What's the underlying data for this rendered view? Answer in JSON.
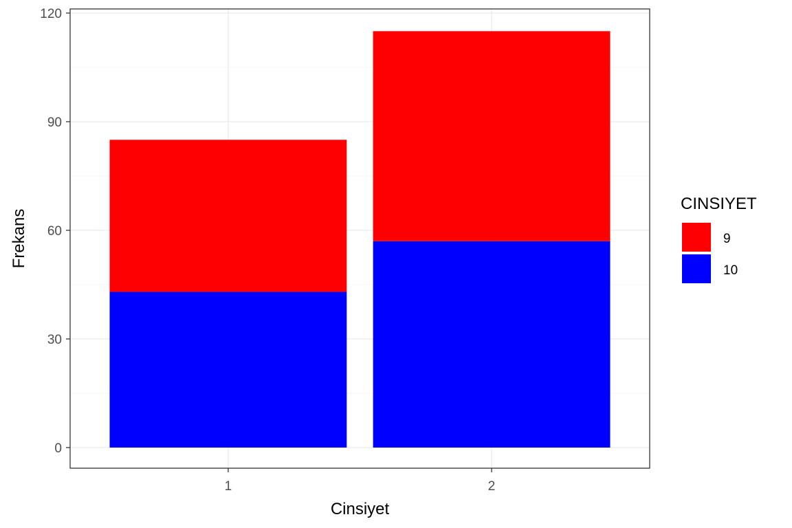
{
  "chart_data": {
    "type": "bar",
    "stacked": true,
    "categories": [
      "1",
      "2"
    ],
    "series": [
      {
        "name": "10",
        "values": [
          43,
          57
        ],
        "color": "#0000FF"
      },
      {
        "name": "9",
        "values": [
          42,
          58
        ],
        "color": "#FF0000"
      }
    ],
    "xlabel": "Cinsiyet",
    "ylabel": "Frekans",
    "ylim": [
      0,
      120
    ],
    "yticks": [
      0,
      30,
      60,
      90,
      120
    ],
    "grid": true,
    "legend": {
      "title": "CINSIYET",
      "placement": "right",
      "entries": [
        {
          "label": "9",
          "color": "#FF0000"
        },
        {
          "label": "10",
          "color": "#0000FF"
        }
      ]
    }
  }
}
